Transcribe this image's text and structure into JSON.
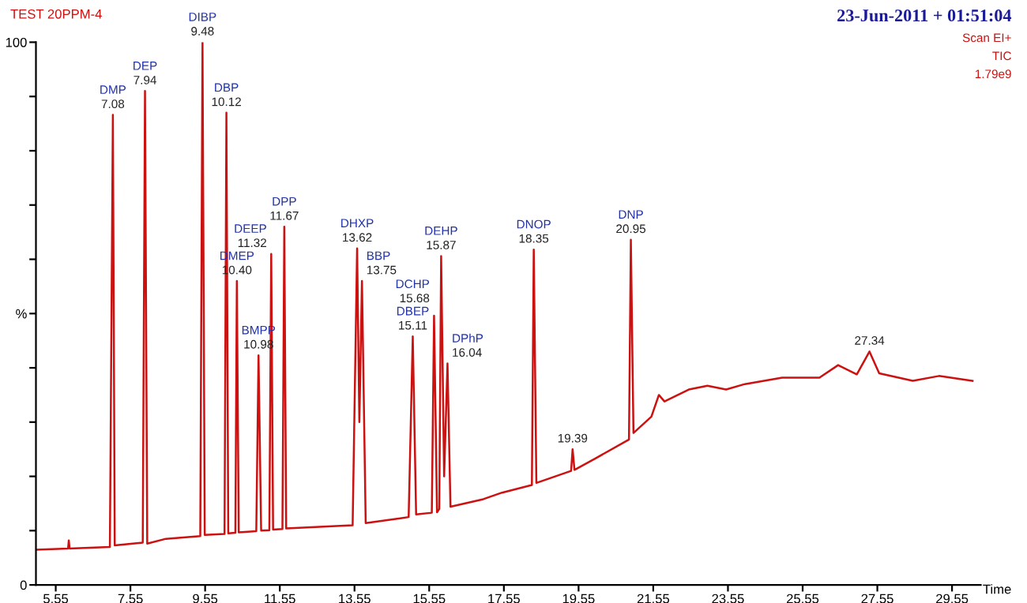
{
  "chart_data": {
    "type": "line",
    "title": "TEST 20PPM-4",
    "subtitle": "23-Jun-2011 + 01:51:04",
    "xlabel": "Time",
    "xlim": [
      5.02,
      30.32
    ],
    "xticks": [
      5.55,
      7.55,
      9.55,
      11.55,
      13.55,
      15.55,
      17.55,
      19.55,
      21.55,
      23.55,
      25.55,
      27.55,
      29.55
    ],
    "ylim": [
      0,
      100
    ],
    "yticks": [
      0,
      {
        "value": 10,
        "label": null
      },
      {
        "value": 20,
        "label": null
      },
      {
        "value": 30,
        "label": null
      },
      {
        "value": 40,
        "label": null
      },
      {
        "value": 50,
        "label": "%"
      },
      {
        "value": 60,
        "label": null
      },
      {
        "value": 70,
        "label": null
      },
      {
        "value": 80,
        "label": null
      },
      {
        "value": 90,
        "label": null
      },
      100
    ],
    "grid": false,
    "legend": false,
    "marker": "none",
    "line_style": "solid",
    "series": [
      {
        "color": "#cc1111",
        "x": [
          5.02,
          5.88,
          5.9,
          5.92,
          7.0,
          7.08,
          7.13,
          7.88,
          7.94,
          8.0,
          8.5,
          9.42,
          9.48,
          9.54,
          10.07,
          10.12,
          10.17,
          10.36,
          10.4,
          10.45,
          10.92,
          10.98,
          11.05,
          11.27,
          11.32,
          11.37,
          11.62,
          11.67,
          11.72,
          13.5,
          13.62,
          13.68,
          13.75,
          13.85,
          15.0,
          15.11,
          15.2,
          15.62,
          15.68,
          15.76,
          15.82,
          15.87,
          15.95,
          16.04,
          16.12,
          17.0,
          17.5,
          18.3,
          18.35,
          18.42,
          19.35,
          19.39,
          19.44,
          20.0,
          20.9,
          20.95,
          21.02,
          21.5,
          21.7,
          21.85,
          22.5,
          23.0,
          23.5,
          24.0,
          25.0,
          26.0,
          26.5,
          27.0,
          27.34,
          27.6,
          28.5,
          29.2,
          30.1
        ],
        "values": [
          6.5,
          6.7,
          8.2,
          6.7,
          7.0,
          86.6,
          7.3,
          7.8,
          91,
          7.6,
          8.5,
          9.0,
          100,
          9.2,
          9.4,
          87,
          9.5,
          9.6,
          56,
          9.7,
          9.9,
          42.3,
          10.0,
          10.1,
          61,
          10.2,
          10.3,
          66,
          10.4,
          11.0,
          62,
          30,
          56,
          11.4,
          12.5,
          45.8,
          13.0,
          13.3,
          49.6,
          13.4,
          14,
          60.6,
          20,
          40.8,
          14.4,
          15.8,
          17.0,
          18.4,
          61.8,
          18.8,
          21.0,
          25,
          21.2,
          23.3,
          26.8,
          63.6,
          28,
          31,
          35,
          33.8,
          36,
          36.7,
          36,
          37,
          38.2,
          38.2,
          40.5,
          38.8,
          43,
          39,
          37.6,
          38.5,
          37.6
        ]
      }
    ],
    "annotations": [
      {
        "text": "DMP",
        "x": 7.08,
        "y": 86.6
      },
      {
        "text": "7.08",
        "x": 7.08,
        "y": 86.6
      },
      {
        "text": "DEP",
        "x": 7.94,
        "y": 91
      },
      {
        "text": "7.94",
        "x": 7.94,
        "y": 91
      },
      {
        "text": "DIBP",
        "x": 9.48,
        "y": 100
      },
      {
        "text": "9.48",
        "x": 9.48,
        "y": 100
      },
      {
        "text": "DBP",
        "x": 10.12,
        "y": 87
      },
      {
        "text": "10.12",
        "x": 10.12,
        "y": 87
      },
      {
        "text": "DMEP",
        "x": 10.4,
        "y": 56
      },
      {
        "text": "10.40",
        "x": 10.4,
        "y": 56
      },
      {
        "text": "BMPP",
        "x": 10.98,
        "y": 42.3
      },
      {
        "text": "10.98",
        "x": 10.98,
        "y": 42.3
      },
      {
        "text": "DEEP",
        "x": 11.32,
        "y": 61
      },
      {
        "text": "11.32",
        "x": 11.32,
        "y": 61
      },
      {
        "text": "DPP",
        "x": 11.67,
        "y": 66
      },
      {
        "text": "11.67",
        "x": 11.67,
        "y": 66
      },
      {
        "text": "DHXP",
        "x": 13.62,
        "y": 62
      },
      {
        "text": "13.62",
        "x": 13.62,
        "y": 62
      },
      {
        "text": "BBP",
        "x": 13.75,
        "y": 56
      },
      {
        "text": "13.75",
        "x": 13.75,
        "y": 56
      },
      {
        "text": "DBEP",
        "x": 15.11,
        "y": 45.8
      },
      {
        "text": "15.11",
        "x": 15.11,
        "y": 45.8
      },
      {
        "text": "DCHP",
        "x": 15.68,
        "y": 49.6
      },
      {
        "text": "15.68",
        "x": 15.68,
        "y": 49.6
      },
      {
        "text": "DEHP",
        "x": 15.87,
        "y": 60.6
      },
      {
        "text": "15.87",
        "x": 15.87,
        "y": 60.6
      },
      {
        "text": "DPhP",
        "x": 16.04,
        "y": 40.8
      },
      {
        "text": "16.04",
        "x": 16.04,
        "y": 40.8
      },
      {
        "text": "DNOP",
        "x": 18.35,
        "y": 61.8
      },
      {
        "text": "18.35",
        "x": 18.35,
        "y": 61.8
      },
      {
        "text": "19.39",
        "x": 19.39,
        "y": 25
      },
      {
        "text": "DNP",
        "x": 20.95,
        "y": 63.6
      },
      {
        "text": "20.95",
        "x": 20.95,
        "y": 63.6
      },
      {
        "text": "27.34",
        "x": 27.34,
        "y": 43
      },
      "Scan EI+",
      "TIC",
      "1.79e9"
    ]
  }
}
